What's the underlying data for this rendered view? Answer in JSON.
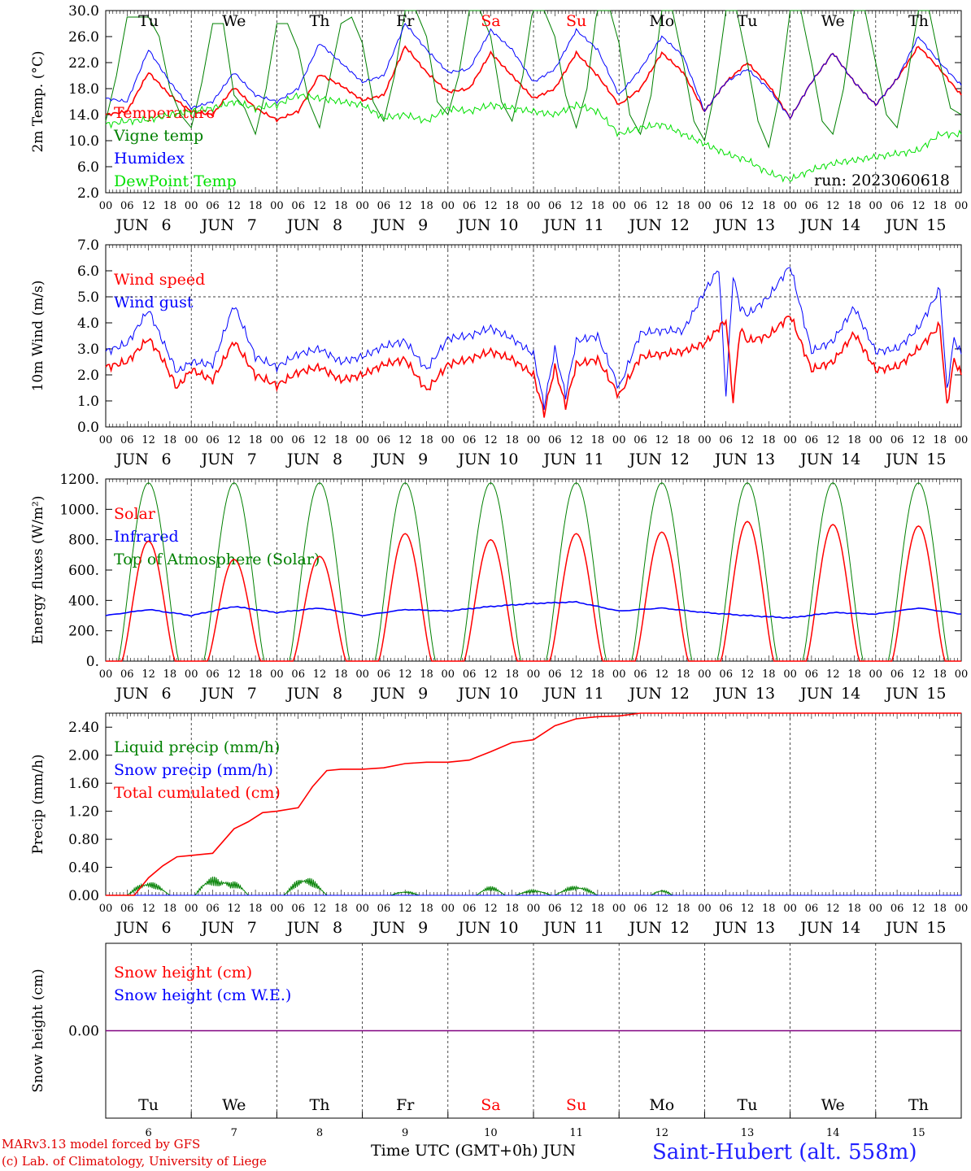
{
  "footer": {
    "credit1": "MARv3.13 model forced by GFS",
    "credit2": "(c) Lab. of Climatology, University of Liege",
    "xlabel": "Time UTC (GMT+0h) JUN",
    "site": "Saint-Hubert (alt. 558m)"
  },
  "colors": {
    "red": "#ff0000",
    "blue": "#0000ff",
    "green": "#008000",
    "lime": "#00e000",
    "purple": "#800080",
    "grid": "#555555"
  },
  "chart_data": [
    {
      "id": "temperature",
      "type": "line",
      "ylabel": "2m Temp. (°C)",
      "ylim": [
        2,
        30
      ],
      "yticks": [
        "2.0",
        "6.0",
        "10.0",
        "14.0",
        "18.0",
        "22.0",
        "26.0",
        "30.0"
      ],
      "run_label": "run: 2023060618",
      "day_names": [
        "Tu",
        "We",
        "Th",
        "Fr",
        "Sa",
        "Su",
        "Mo",
        "Tu",
        "We",
        "Th"
      ],
      "day_name_colors": [
        "#000",
        "#000",
        "#000",
        "#000",
        "#ff0000",
        "#ff0000",
        "#000",
        "#000",
        "#000",
        "#000"
      ],
      "x_unit": "hours since JUN 6 00 UTC",
      "legend": [
        "Temperature",
        "Vigne temp",
        "Humidex",
        "DewPoint Temp"
      ],
      "series": [
        {
          "name": "Temperature",
          "color": "#ff0000",
          "x": [
            0,
            6,
            12,
            18,
            24,
            30,
            36,
            42,
            48,
            54,
            60,
            66,
            72,
            78,
            84,
            90,
            96,
            102,
            108,
            114,
            120,
            126,
            132,
            138,
            144,
            150,
            156,
            162,
            168,
            174,
            180,
            186,
            192,
            198,
            204,
            210,
            216,
            222,
            228,
            234,
            240
          ],
          "y": [
            14,
            14.5,
            20.5,
            17,
            14.5,
            14,
            18.2,
            15,
            13.2,
            14.5,
            20.2,
            18.5,
            16.2,
            17,
            24.5,
            20.5,
            17.5,
            18,
            23.5,
            20,
            16.5,
            18,
            23.5,
            20,
            15.5,
            18,
            23.5,
            20.5,
            14.5,
            19,
            22,
            18.5,
            13.5,
            19,
            23.5,
            19,
            15.5,
            19.5,
            24.5,
            21,
            17
          ]
        },
        {
          "name": "Vigne temp",
          "color": "#008000",
          "x": [
            0,
            3,
            6,
            9,
            12,
            15,
            18,
            21,
            24,
            27,
            30,
            33,
            36,
            39,
            42,
            45,
            48,
            51,
            54,
            57,
            60,
            63,
            66,
            69,
            72,
            75,
            78,
            81,
            84,
            87,
            90,
            93,
            96,
            99,
            102,
            105,
            108,
            111,
            114,
            117,
            120,
            123,
            126,
            129,
            132,
            135,
            138,
            141,
            144,
            147,
            150,
            153,
            156,
            159,
            162,
            165,
            168,
            171,
            174,
            177,
            180,
            183,
            186,
            189,
            192,
            195,
            198,
            201,
            204,
            207,
            210,
            213,
            216,
            219,
            222,
            225,
            228,
            231,
            234,
            237,
            240
          ],
          "y": [
            13,
            20,
            29,
            29,
            29,
            26,
            18,
            14,
            12,
            19,
            28,
            28,
            17,
            15,
            11,
            18,
            28,
            28,
            24,
            16,
            12,
            20,
            28,
            29,
            25,
            16,
            13,
            20,
            30,
            30,
            26,
            16,
            14,
            20,
            30,
            30,
            26,
            16,
            13,
            20,
            31,
            30,
            26,
            17,
            12,
            18,
            31,
            31,
            25,
            14,
            11,
            17,
            30,
            30,
            22,
            13,
            10,
            18,
            30,
            30,
            22,
            13,
            9,
            17,
            30,
            30,
            22,
            13,
            11,
            18,
            30,
            30,
            22,
            14,
            12,
            20,
            30,
            30,
            22,
            15,
            14
          ]
        },
        {
          "name": "Humidex",
          "color": "#0000ff",
          "x": [
            0,
            6,
            12,
            18,
            24,
            30,
            36,
            42,
            48,
            54,
            60,
            66,
            72,
            78,
            84,
            90,
            96,
            102,
            108,
            114,
            120,
            126,
            132,
            138,
            144,
            150,
            156,
            162,
            168,
            174,
            180,
            186,
            192,
            198,
            204,
            210,
            216,
            222,
            228,
            234,
            240
          ],
          "y": [
            16.5,
            16,
            24,
            19,
            15,
            16,
            20.5,
            17,
            16,
            18,
            25,
            22,
            19,
            20,
            28,
            24,
            20.5,
            21,
            27,
            24,
            19,
            21,
            27,
            24,
            17,
            21,
            26,
            23,
            14.5,
            19,
            21,
            18,
            13.5,
            19,
            23.5,
            19,
            15.5,
            19.5,
            26,
            22,
            18.5
          ]
        },
        {
          "name": "DewPoint Temp",
          "color": "#00e000",
          "x": [
            0,
            6,
            12,
            18,
            24,
            30,
            36,
            42,
            48,
            54,
            60,
            66,
            72,
            78,
            84,
            90,
            96,
            102,
            108,
            114,
            120,
            126,
            132,
            138,
            144,
            150,
            156,
            162,
            168,
            174,
            180,
            186,
            192,
            198,
            204,
            210,
            216,
            222,
            228,
            234,
            240
          ],
          "y": [
            12.5,
            13,
            13.2,
            14,
            14.5,
            15,
            16,
            15,
            15.5,
            17,
            16.5,
            16,
            15.5,
            13.5,
            14,
            13,
            15,
            14.5,
            15.5,
            15,
            14.5,
            14,
            15.5,
            14.5,
            11,
            12,
            12.5,
            11,
            9.5,
            8,
            7,
            5,
            4,
            5.5,
            6.5,
            7,
            7.5,
            8,
            8.5,
            11,
            11
          ]
        }
      ]
    },
    {
      "id": "wind",
      "type": "line",
      "ylabel": "10m Wind (m/s)",
      "ylim": [
        0,
        7
      ],
      "yticks": [
        "0.0",
        "1.0",
        "2.0",
        "3.0",
        "4.0",
        "5.0",
        "6.0",
        "7.0"
      ],
      "reference_line": 5,
      "legend": [
        "Wind speed",
        "Wind gust"
      ],
      "series": [
        {
          "name": "Wind speed",
          "color": "#ff0000",
          "x": [
            0,
            6,
            12,
            16,
            20,
            24,
            30,
            36,
            42,
            48,
            54,
            60,
            66,
            72,
            78,
            84,
            90,
            96,
            102,
            108,
            114,
            120,
            123,
            126,
            129,
            132,
            138,
            144,
            150,
            156,
            162,
            168,
            174,
            176,
            178,
            180,
            186,
            192,
            198,
            204,
            210,
            216,
            222,
            228,
            234,
            236,
            238,
            240
          ],
          "y": [
            2.3,
            2.5,
            3.4,
            2.6,
            1.5,
            2.2,
            1.8,
            3.3,
            2.0,
            1.6,
            2.1,
            2.3,
            1.8,
            2.0,
            2.4,
            2.6,
            1.4,
            2.4,
            2.6,
            2.9,
            2.6,
            2.0,
            0.5,
            2.3,
            0.8,
            2.4,
            2.6,
            1.2,
            2.7,
            2.8,
            2.9,
            3.2,
            4.1,
            1.0,
            3.8,
            3.3,
            3.5,
            4.3,
            2.2,
            2.5,
            3.6,
            2.2,
            2.3,
            3.0,
            3.9,
            0.8,
            2.6,
            2.0
          ]
        },
        {
          "name": "Wind gust",
          "color": "#0000ff",
          "x": [
            0,
            6,
            12,
            16,
            20,
            24,
            30,
            36,
            42,
            48,
            54,
            60,
            66,
            72,
            78,
            84,
            90,
            96,
            102,
            108,
            114,
            120,
            123,
            126,
            129,
            132,
            138,
            144,
            150,
            156,
            162,
            168,
            172,
            174,
            176,
            178,
            180,
            186,
            192,
            198,
            204,
            210,
            216,
            222,
            228,
            234,
            236,
            238,
            240
          ],
          "y": [
            2.9,
            3.2,
            4.5,
            3.3,
            2.1,
            2.5,
            2.4,
            4.7,
            2.7,
            2.3,
            2.8,
            3.0,
            2.5,
            2.7,
            3.1,
            3.3,
            2.2,
            3.4,
            3.5,
            3.8,
            3.4,
            2.8,
            0.8,
            3.0,
            1.2,
            3.3,
            3.5,
            1.5,
            3.6,
            3.7,
            3.7,
            5.2,
            6.1,
            1.2,
            5.8,
            4.6,
            4.3,
            5.0,
            6.2,
            2.9,
            3.3,
            4.6,
            2.9,
            3.0,
            3.8,
            5.3,
            1.4,
            3.4,
            2.8
          ]
        }
      ]
    },
    {
      "id": "energy",
      "type": "line",
      "ylabel": "Energy fluxes (W/m²)",
      "ylim": [
        0,
        1200
      ],
      "yticks": [
        "0.",
        "200.",
        "400.",
        "600.",
        "800.",
        "1000.",
        "1200."
      ],
      "legend": [
        "Solar",
        "Infrared",
        "Top of Atmosphere (Solar)"
      ],
      "toa_peak": 1175,
      "solar_peaks": [
        790,
        670,
        690,
        840,
        800,
        840,
        850,
        920,
        900,
        890
      ],
      "infrared": {
        "x": [
          0,
          12,
          24,
          36,
          48,
          60,
          72,
          84,
          96,
          108,
          120,
          132,
          144,
          156,
          168,
          180,
          192,
          204,
          216,
          228,
          240
        ],
        "y": [
          300,
          340,
          300,
          360,
          320,
          350,
          300,
          340,
          330,
          360,
          380,
          390,
          330,
          350,
          320,
          300,
          285,
          320,
          310,
          350,
          310
        ]
      }
    },
    {
      "id": "precip",
      "type": "line",
      "ylabel": "Precip (mm/h)",
      "ylim": [
        0,
        2.6
      ],
      "yticks": [
        "0.00",
        "0.40",
        "0.80",
        "1.20",
        "1.60",
        "2.00",
        "2.40"
      ],
      "legend": [
        "Liquid precip (mm/h)",
        "Snow precip (mm/h)",
        "Total cumulated (cm)"
      ],
      "cumulated": {
        "x": [
          0,
          8,
          12,
          16,
          20,
          24,
          30,
          36,
          40,
          44,
          48,
          54,
          58,
          62,
          66,
          72,
          78,
          84,
          90,
          96,
          102,
          108,
          114,
          120,
          126,
          132,
          138,
          144,
          150,
          156,
          160,
          240
        ],
        "y": [
          0,
          0,
          0.25,
          0.42,
          0.55,
          0.57,
          0.6,
          0.95,
          1.05,
          1.18,
          1.2,
          1.25,
          1.55,
          1.78,
          1.8,
          1.8,
          1.82,
          1.88,
          1.9,
          1.9,
          1.93,
          2.05,
          2.18,
          2.22,
          2.42,
          2.52,
          2.55,
          2.56,
          2.6,
          2.6,
          2.6,
          2.6
        ]
      },
      "liquid_bumps": [
        [
          12,
          0.2,
          6
        ],
        [
          30,
          0.27,
          5
        ],
        [
          36,
          0.2,
          4
        ],
        [
          56,
          0.27,
          6
        ],
        [
          84,
          0.06,
          4
        ],
        [
          108,
          0.13,
          4
        ],
        [
          120,
          0.08,
          5
        ],
        [
          132,
          0.14,
          6
        ],
        [
          156,
          0.08,
          3
        ]
      ]
    },
    {
      "id": "snow",
      "type": "line",
      "ylabel": "Snow height (cm)",
      "ylim": [
        -1,
        1
      ],
      "yticks": [
        "0.00"
      ],
      "legend": [
        "Snow height (cm)",
        "Snow height (cm W.E.)"
      ],
      "value": 0,
      "day_names": [
        "Tu",
        "We",
        "Th",
        "Fr",
        "Sa",
        "Su",
        "Mo",
        "Tu",
        "We",
        "Th"
      ],
      "day_numbers": [
        "6",
        "7",
        "8",
        "9",
        "10",
        "11",
        "12",
        "13",
        "14",
        "15"
      ]
    }
  ],
  "x_axis": {
    "hour_labels": [
      "00",
      "06",
      "12",
      "18"
    ],
    "last_label": "00",
    "month": "JUN",
    "dates": [
      "6",
      "7",
      "8",
      "9",
      "10",
      "11",
      "12",
      "13",
      "14",
      "15"
    ]
  }
}
